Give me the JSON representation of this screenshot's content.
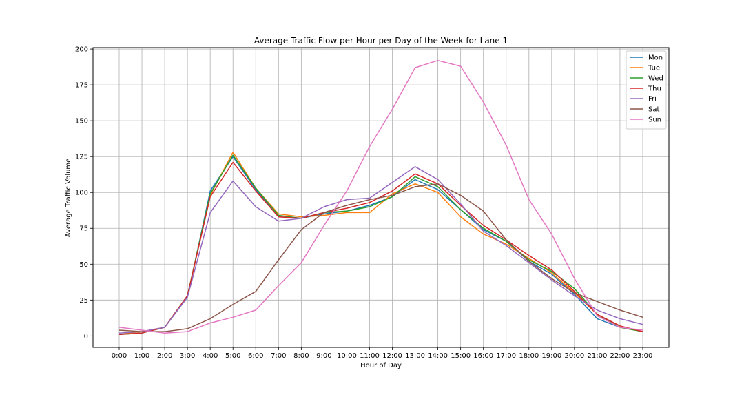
{
  "chart_data": {
    "type": "line",
    "title": "Average Traffic Flow per Hour per Day of the Week for Lane 1",
    "xlabel": "Hour of Day",
    "ylabel": "Average Traffic Volume",
    "categories": [
      "0:00",
      "1:00",
      "2:00",
      "3:00",
      "4:00",
      "5:00",
      "6:00",
      "7:00",
      "8:00",
      "9:00",
      "10:00",
      "11:00",
      "12:00",
      "13:00",
      "14:00",
      "15:00",
      "16:00",
      "17:00",
      "18:00",
      "19:00",
      "20:00",
      "21:00",
      "22:00",
      "23:00"
    ],
    "ylim": [
      -8,
      201
    ],
    "yticks": [
      0,
      25,
      50,
      75,
      100,
      125,
      150,
      175,
      200
    ],
    "grid": true,
    "legend_position": "top-right",
    "series": [
      {
        "name": "Mon",
        "color": "#1f77b4",
        "values": [
          1,
          2,
          6,
          27,
          101,
          125,
          102,
          83,
          82,
          85,
          87,
          91,
          97,
          109,
          102,
          88,
          74,
          66,
          52,
          43,
          29,
          12,
          6,
          3
        ]
      },
      {
        "name": "Tue",
        "color": "#ff7f0e",
        "values": [
          1,
          3,
          6,
          28,
          98,
          128,
          103,
          85,
          83,
          84,
          86,
          86,
          99,
          106,
          100,
          83,
          71,
          64,
          54,
          44,
          30,
          15,
          6,
          3
        ]
      },
      {
        "name": "Wed",
        "color": "#2ca02c",
        "values": [
          1,
          2,
          6,
          28,
          99,
          126,
          103,
          84,
          82,
          86,
          87,
          90,
          97,
          111,
          104,
          88,
          75,
          66,
          53,
          45,
          33,
          15,
          6,
          3
        ]
      },
      {
        "name": "Thu",
        "color": "#d62728",
        "values": [
          1,
          2,
          6,
          28,
          97,
          121,
          101,
          83,
          82,
          86,
          89,
          93,
          101,
          113,
          106,
          91,
          77,
          67,
          56,
          46,
          31,
          15,
          7,
          3
        ]
      },
      {
        "name": "Fri",
        "color": "#9467bd",
        "values": [
          2,
          3,
          6,
          27,
          86,
          108,
          90,
          80,
          82,
          90,
          95,
          96,
          107,
          118,
          109,
          92,
          73,
          63,
          51,
          39,
          28,
          18,
          12,
          8
        ]
      },
      {
        "name": "Sat",
        "color": "#8c564b",
        "values": [
          4,
          3,
          3,
          5,
          12,
          22,
          31,
          53,
          74,
          86,
          91,
          95,
          98,
          104,
          106,
          98,
          87,
          67,
          52,
          40,
          30,
          24,
          18,
          13
        ]
      },
      {
        "name": "Sun",
        "color": "#e377c2",
        "values": [
          6,
          4,
          2,
          3,
          9,
          13,
          18,
          35,
          51,
          77,
          101,
          132,
          158,
          187,
          192,
          188,
          163,
          133,
          95,
          71,
          40,
          14,
          6,
          4
        ]
      }
    ]
  }
}
